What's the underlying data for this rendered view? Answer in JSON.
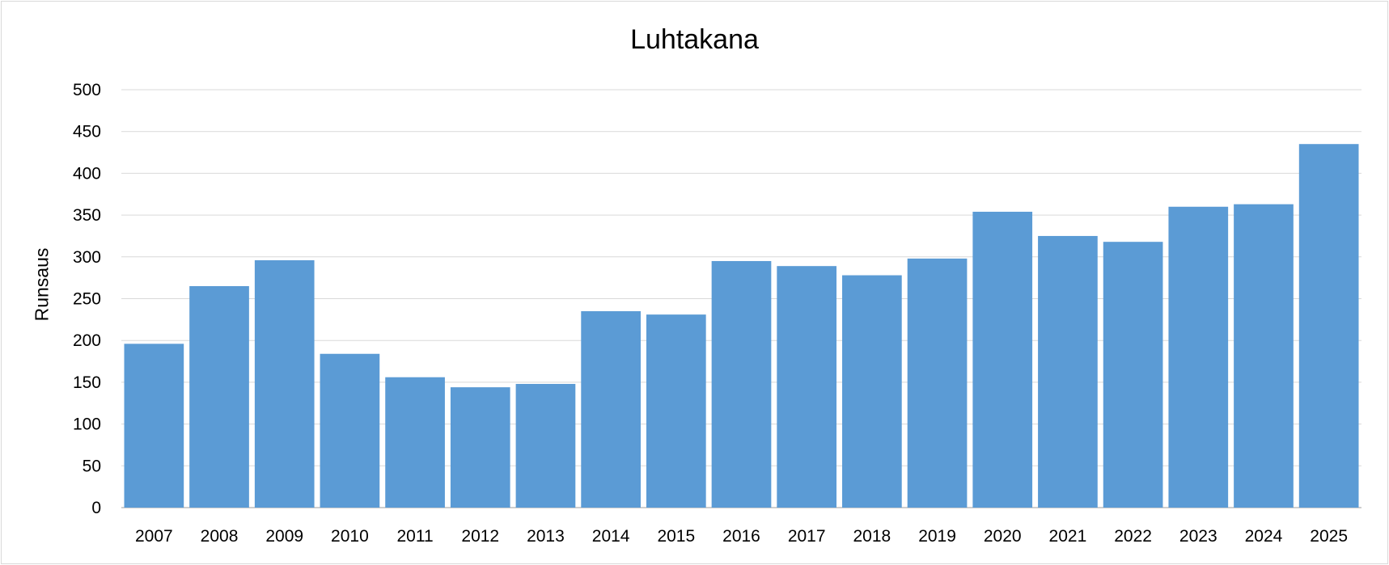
{
  "chart_data": {
    "type": "bar",
    "title": "Luhtakana",
    "xlabel": "",
    "ylabel": "Runsaus",
    "ylim": [
      0,
      500
    ],
    "yticks": [
      0,
      50,
      100,
      150,
      200,
      250,
      300,
      350,
      400,
      450,
      500
    ],
    "categories": [
      "2007",
      "2008",
      "2009",
      "2010",
      "2011",
      "2012",
      "2013",
      "2014",
      "2015",
      "2016",
      "2017",
      "2018",
      "2019",
      "2020",
      "2021",
      "2022",
      "2023",
      "2024",
      "2025"
    ],
    "values": [
      196,
      265,
      296,
      184,
      156,
      144,
      148,
      235,
      231,
      295,
      289,
      278,
      298,
      354,
      325,
      318,
      360,
      363,
      435
    ],
    "bar_color": "#5b9bd5",
    "grid": true,
    "legend": "none"
  }
}
